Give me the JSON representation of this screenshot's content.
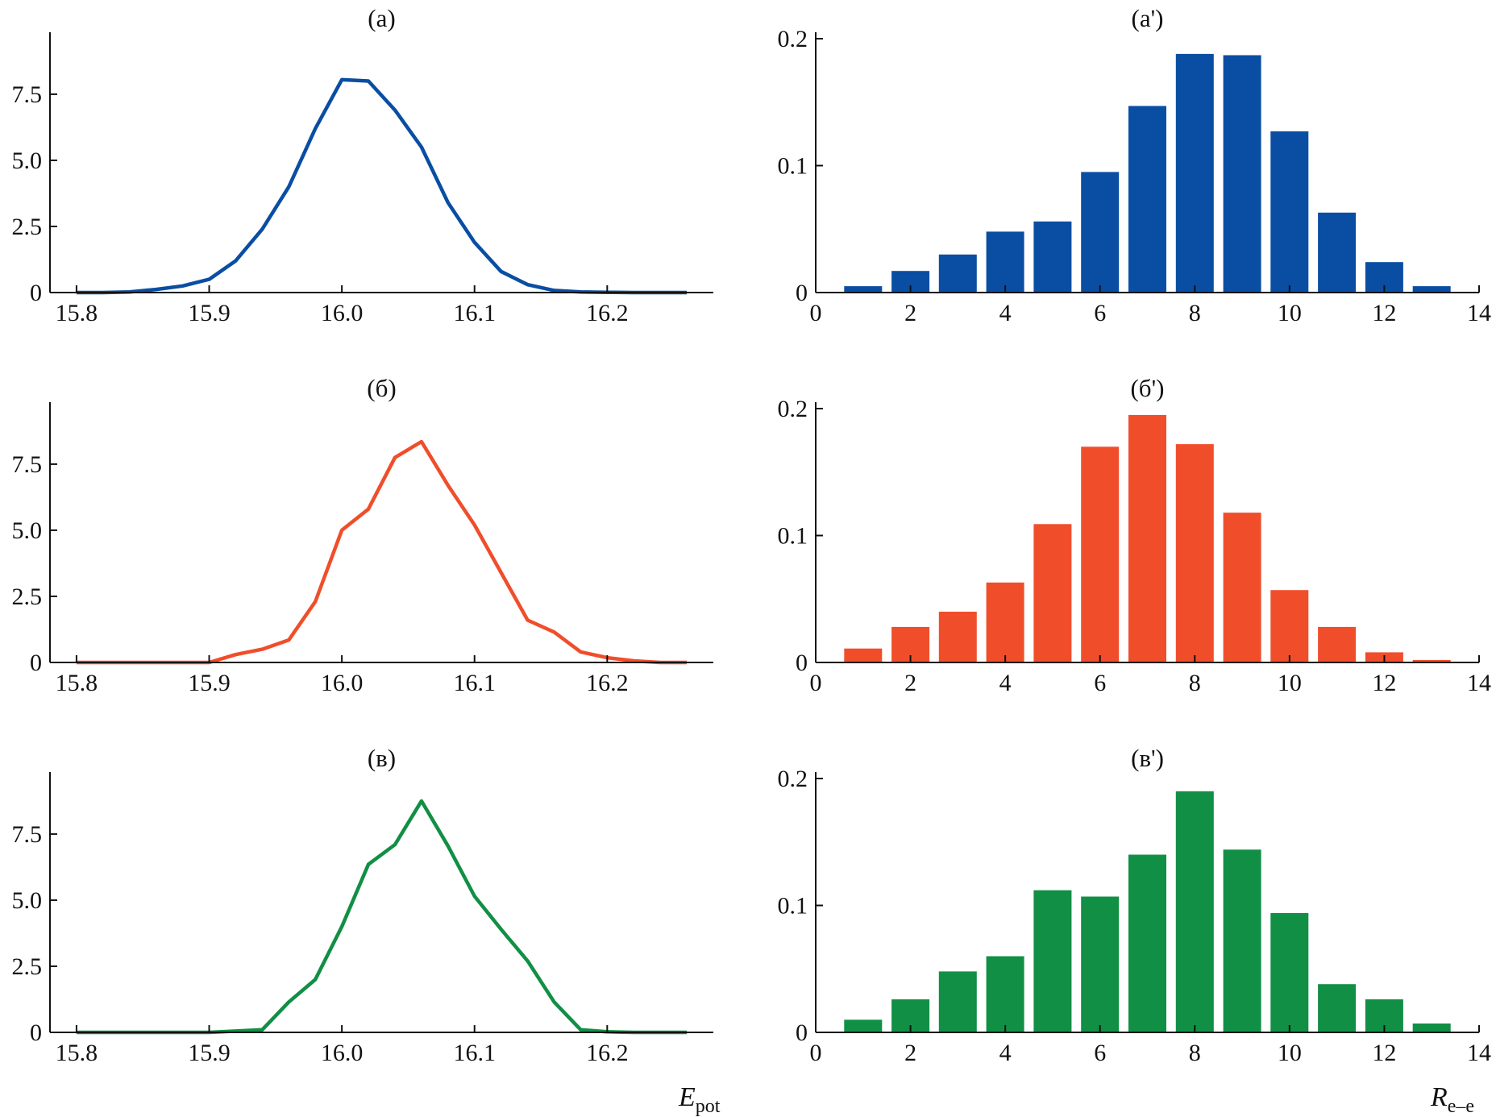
{
  "colors": {
    "a": "#0a4ea3",
    "b": "#f04e2b",
    "v": "#118f45"
  },
  "xlabels": {
    "left_main": "E",
    "left_sub": "pot",
    "right_main": "R",
    "right_sub": "e–e"
  },
  "chart_data": [
    {
      "id": "a",
      "type": "line",
      "title": "(а)",
      "color_key": "a",
      "xlim": [
        15.78,
        16.28
      ],
      "ylim": [
        0,
        9.6
      ],
      "xticks": [
        15.8,
        15.9,
        16.0,
        16.1,
        16.2
      ],
      "xtick_labels": [
        "15.8",
        "15.9",
        "16.0",
        "16.1",
        "16.2"
      ],
      "yticks": [
        0,
        2.5,
        5.0,
        7.5
      ],
      "ytick_labels": [
        "0",
        "2.5",
        "5.0",
        "7.5"
      ],
      "x": [
        15.8,
        15.82,
        15.84,
        15.86,
        15.88,
        15.9,
        15.92,
        15.94,
        15.96,
        15.98,
        16.0,
        16.02,
        16.04,
        16.06,
        16.08,
        16.1,
        16.12,
        16.14,
        16.16,
        16.18,
        16.2,
        16.22,
        16.24,
        16.26
      ],
      "y": [
        0,
        0,
        0.02,
        0.12,
        0.25,
        0.5,
        1.2,
        2.4,
        4.0,
        6.2,
        8.05,
        8.0,
        6.9,
        5.5,
        3.4,
        1.9,
        0.8,
        0.3,
        0.08,
        0.02,
        0.01,
        0,
        0,
        0
      ]
    },
    {
      "id": "a2",
      "type": "bar",
      "title": "(а')",
      "color_key": "a",
      "xlim": [
        0,
        14
      ],
      "ylim": [
        0,
        0.2
      ],
      "xticks": [
        0,
        2,
        4,
        6,
        8,
        10,
        12,
        14
      ],
      "xtick_labels": [
        "0",
        "2",
        "4",
        "6",
        "8",
        "10",
        "12",
        "14"
      ],
      "yticks": [
        0,
        0.1,
        0.2
      ],
      "ytick_labels": [
        "0",
        "0.1",
        "0.2"
      ],
      "x": [
        1,
        2,
        3,
        4,
        5,
        6,
        7,
        8,
        9,
        10,
        11,
        12,
        13
      ],
      "values": [
        0.005,
        0.017,
        0.03,
        0.048,
        0.056,
        0.095,
        0.147,
        0.188,
        0.187,
        0.127,
        0.063,
        0.024,
        0.005
      ]
    },
    {
      "id": "b",
      "type": "line",
      "title": "(б)",
      "color_key": "b",
      "xlim": [
        15.78,
        16.28
      ],
      "ylim": [
        0,
        9.6
      ],
      "xticks": [
        15.8,
        15.9,
        16.0,
        16.1,
        16.2
      ],
      "xtick_labels": [
        "15.8",
        "15.9",
        "16.0",
        "16.1",
        "16.2"
      ],
      "yticks": [
        0,
        2.5,
        5.0,
        7.5
      ],
      "ytick_labels": [
        "0",
        "2.5",
        "5.0",
        "7.5"
      ],
      "x": [
        15.8,
        15.82,
        15.84,
        15.86,
        15.88,
        15.9,
        15.92,
        15.94,
        15.96,
        15.98,
        16.0,
        16.02,
        16.04,
        16.06,
        16.08,
        16.1,
        16.12,
        16.14,
        16.16,
        16.18,
        16.2,
        16.22,
        16.24,
        16.26
      ],
      "y": [
        0,
        0,
        0,
        0,
        0,
        0,
        0.3,
        0.5,
        0.85,
        2.3,
        5.0,
        5.8,
        7.75,
        8.35,
        6.7,
        5.2,
        3.4,
        1.6,
        1.15,
        0.4,
        0.18,
        0.06,
        0,
        0
      ]
    },
    {
      "id": "b2",
      "type": "bar",
      "title": "(б')",
      "color_key": "b",
      "xlim": [
        0,
        14
      ],
      "ylim": [
        0,
        0.2
      ],
      "xticks": [
        0,
        2,
        4,
        6,
        8,
        10,
        12,
        14
      ],
      "xtick_labels": [
        "0",
        "2",
        "4",
        "6",
        "8",
        "10",
        "12",
        "14"
      ],
      "yticks": [
        0,
        0.1,
        0.2
      ],
      "ytick_labels": [
        "0",
        "0.1",
        "0.2"
      ],
      "x": [
        1,
        2,
        3,
        4,
        5,
        6,
        7,
        8,
        9,
        10,
        11,
        12,
        13
      ],
      "values": [
        0.011,
        0.028,
        0.04,
        0.063,
        0.109,
        0.17,
        0.195,
        0.172,
        0.118,
        0.057,
        0.028,
        0.008,
        0.002
      ]
    },
    {
      "id": "v",
      "type": "line",
      "title": "(в)",
      "color_key": "v",
      "xlim": [
        15.78,
        16.28
      ],
      "ylim": [
        0,
        9.6
      ],
      "xticks": [
        15.8,
        15.9,
        16.0,
        16.1,
        16.2
      ],
      "xtick_labels": [
        "15.8",
        "15.9",
        "16.0",
        "16.1",
        "16.2"
      ],
      "yticks": [
        0,
        2.5,
        5.0,
        7.5
      ],
      "ytick_labels": [
        "0",
        "2.5",
        "5.0",
        "7.5"
      ],
      "x": [
        15.8,
        15.82,
        15.84,
        15.86,
        15.88,
        15.9,
        15.92,
        15.94,
        15.96,
        15.98,
        16.0,
        16.02,
        16.04,
        16.06,
        16.08,
        16.1,
        16.12,
        16.14,
        16.16,
        16.18,
        16.2,
        16.22,
        16.24,
        16.26
      ],
      "y": [
        0,
        0,
        0,
        0,
        0,
        0,
        0.05,
        0.1,
        1.15,
        2.0,
        4.0,
        6.35,
        7.1,
        8.75,
        7.05,
        5.15,
        3.9,
        2.7,
        1.15,
        0.1,
        0.02,
        0,
        0,
        0
      ]
    },
    {
      "id": "v2",
      "type": "bar",
      "title": "(в')",
      "color_key": "v",
      "xlim": [
        0,
        14
      ],
      "ylim": [
        0,
        0.2
      ],
      "xticks": [
        0,
        2,
        4,
        6,
        8,
        10,
        12,
        14
      ],
      "xtick_labels": [
        "0",
        "2",
        "4",
        "6",
        "8",
        "10",
        "12",
        "14"
      ],
      "yticks": [
        0,
        0.1,
        0.2
      ],
      "ytick_labels": [
        "0",
        "0.1",
        "0.2"
      ],
      "x": [
        1,
        2,
        3,
        4,
        5,
        6,
        7,
        8,
        9,
        10,
        11,
        12,
        13
      ],
      "values": [
        0.01,
        0.026,
        0.048,
        0.06,
        0.112,
        0.107,
        0.14,
        0.19,
        0.144,
        0.094,
        0.038,
        0.026,
        0.007
      ]
    }
  ]
}
